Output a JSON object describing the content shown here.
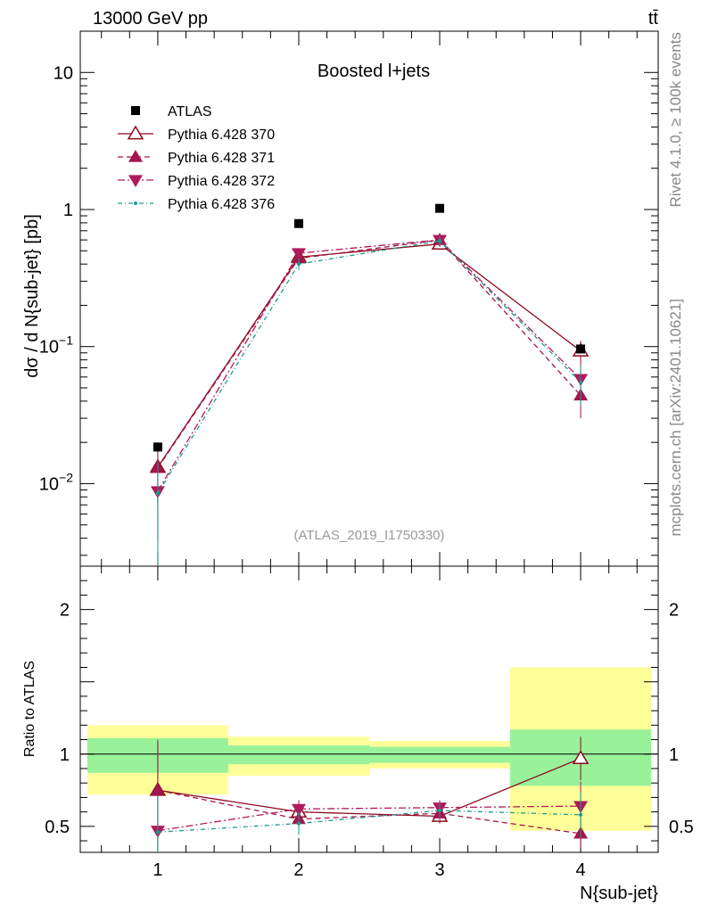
{
  "header": {
    "left": "13000 GeV pp",
    "right": "tt̄"
  },
  "side_labels": {
    "rivet": "Rivet 4.1.0, ≥ 100k events",
    "mcplots": "mcplots.cern.ch [arXiv:2401.10621]"
  },
  "chart_data": {
    "type": "line",
    "title": "Boosted l+jets",
    "analysis": "(ATLAS_2019_I1750330)",
    "xlabel": "N{sub-jet}",
    "ylabel_main": "dσ / d N{sub-jet} [pb]",
    "ylabel_ratio": "Ratio to ATLAS",
    "x": [
      1,
      2,
      3,
      4
    ],
    "xlim": [
      0.45,
      4.55
    ],
    "ylim_main": [
      0.0025,
      20
    ],
    "ylim_ratio": [
      0.32,
      2.3
    ],
    "main_yticks": [
      {
        "value": 0.01,
        "label": "10^-2"
      },
      {
        "value": 0.1,
        "label": "10^-1"
      },
      {
        "value": 1,
        "label": "1"
      },
      {
        "value": 10,
        "label": "10"
      }
    ],
    "ratio_yticks": [
      {
        "value": 0.5,
        "label": "0.5"
      },
      {
        "value": 1,
        "label": "1"
      },
      {
        "value": 2,
        "label": "2"
      }
    ],
    "xticks": [
      {
        "value": 1,
        "label": "1"
      },
      {
        "value": 2,
        "label": "2"
      },
      {
        "value": 3,
        "label": "3"
      },
      {
        "value": 4,
        "label": "4"
      }
    ],
    "data": {
      "name": "ATLAS",
      "values": [
        0.0185,
        0.79,
        1.02,
        0.096
      ],
      "band_inner": [
        [
          0.87,
          1.11
        ],
        [
          0.93,
          1.06
        ],
        [
          0.94,
          1.05
        ],
        [
          0.78,
          1.17
        ]
      ],
      "band_outer": [
        [
          0.72,
          1.2
        ],
        [
          0.85,
          1.12
        ],
        [
          0.9,
          1.09
        ],
        [
          0.47,
          1.6
        ]
      ]
    },
    "series": [
      {
        "name": "Pythia 6.428 370",
        "color": "#8b0a1e",
        "dash": "",
        "marker": "triangle-up-open",
        "values": [
          0.0132,
          0.45,
          0.56,
          0.093
        ],
        "errors": [
          0.006,
          0.04,
          0.04,
          0.017
        ],
        "ratio": [
          0.75,
          0.6,
          0.57,
          0.97
        ],
        "ratio_errors": [
          0.33,
          0.06,
          0.05,
          0.15
        ]
      },
      {
        "name": "Pythia 6.428 371",
        "color": "#a3154d",
        "dash": "6,4",
        "marker": "triangle-up-filled",
        "values": [
          0.013,
          0.44,
          0.6,
          0.044
        ],
        "errors": [
          0.007,
          0.04,
          0.05,
          0.014
        ],
        "ratio": [
          0.75,
          0.55,
          0.59,
          0.45
        ],
        "ratio_errors": [
          0.35,
          0.07,
          0.05,
          0.1
        ]
      },
      {
        "name": "Pythia 6.428 372",
        "color": "#b01a5a",
        "dash": "8,3,2,3",
        "marker": "triangle-down-filled",
        "values": [
          0.0088,
          0.48,
          0.6,
          0.058
        ],
        "errors": [
          0.005,
          0.04,
          0.05,
          0.018
        ],
        "ratio": [
          0.47,
          0.62,
          0.63,
          0.64
        ],
        "ratio_errors": [
          0.3,
          0.06,
          0.05,
          0.17
        ]
      },
      {
        "name": "Pythia 6.428 376",
        "color": "#1a9c8c",
        "dash": "5,3,1,3",
        "marker": "dot",
        "values": [
          0.0085,
          0.4,
          0.59,
          0.055
        ],
        "errors": [
          0.006,
          0.04,
          0.05,
          0.018
        ],
        "ratio": [
          0.46,
          0.52,
          0.61,
          0.58
        ],
        "ratio_errors": [
          0.25,
          0.08,
          0.05,
          0.16
        ]
      }
    ]
  }
}
